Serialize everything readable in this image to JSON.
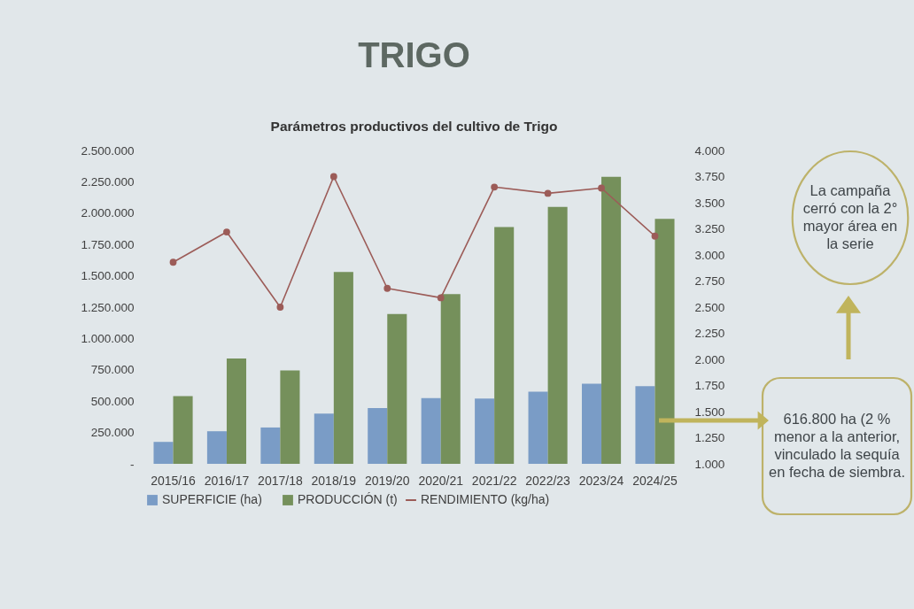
{
  "chart_data": {
    "type": "bar",
    "title": "TRIGO",
    "subtitle": "Parámetros productivos del cultivo de Trigo",
    "categories": [
      "2015/16",
      "2016/17",
      "2017/18",
      "2018/19",
      "2019/20",
      "2020/21",
      "2021/22",
      "2022/23",
      "2023/24",
      "2024/25"
    ],
    "series": [
      {
        "name": "SUPERFICIE (ha)",
        "color": "#7a9cc6",
        "values": [
          175000,
          260000,
          290000,
          400000,
          445000,
          525000,
          520000,
          575000,
          640000,
          620000
        ]
      },
      {
        "name": "PRODUCCIÓN (t)",
        "color": "#75905b",
        "values": [
          540000,
          840000,
          745000,
          1530000,
          1195000,
          1355000,
          1890000,
          2050000,
          2290000,
          1955000
        ]
      },
      {
        "name": "RENDIMIENTO (kg/ha)",
        "type": "line",
        "axis": "y2",
        "color": "#9c5c58",
        "values": [
          2930,
          3220,
          2500,
          3750,
          2680,
          2590,
          3650,
          3590,
          3640,
          3180
        ]
      }
    ],
    "ylim": [
      0,
      2500000
    ],
    "yticks": [
      {
        "value": 0,
        "label": "-"
      },
      {
        "value": 250000,
        "label": "250.000"
      },
      {
        "value": 500000,
        "label": "500.000"
      },
      {
        "value": 750000,
        "label": "750.000"
      },
      {
        "value": 1000000,
        "label": "1.000.000"
      },
      {
        "value": 1250000,
        "label": "1.250.000"
      },
      {
        "value": 1500000,
        "label": "1.500.000"
      },
      {
        "value": 1750000,
        "label": "1.750.000"
      },
      {
        "value": 2000000,
        "label": "2.000.000"
      },
      {
        "value": 2250000,
        "label": "2.250.000"
      },
      {
        "value": 2500000,
        "label": "2.500.000"
      }
    ],
    "y2lim": [
      1000,
      4000
    ],
    "y2ticks": [
      {
        "value": 1000,
        "label": "1.000"
      },
      {
        "value": 1250,
        "label": "1.250"
      },
      {
        "value": 1500,
        "label": "1.500"
      },
      {
        "value": 1750,
        "label": "1.750"
      },
      {
        "value": 2000,
        "label": "2.000"
      },
      {
        "value": 2250,
        "label": "2.250"
      },
      {
        "value": 2500,
        "label": "2.500"
      },
      {
        "value": 2750,
        "label": "2.750"
      },
      {
        "value": 3000,
        "label": "3.000"
      },
      {
        "value": 3250,
        "label": "3.250"
      },
      {
        "value": 3500,
        "label": "3.500"
      },
      {
        "value": 3750,
        "label": "3.750"
      },
      {
        "value": 4000,
        "label": "4.000"
      }
    ],
    "marker": "circle",
    "legend": "bottom",
    "annotations": [
      "La campaña cerró con la 2° mayor área en la serie",
      "616.800 ha (2 % menor a la anterior, vinculado la sequía en fecha de siembra."
    ]
  }
}
